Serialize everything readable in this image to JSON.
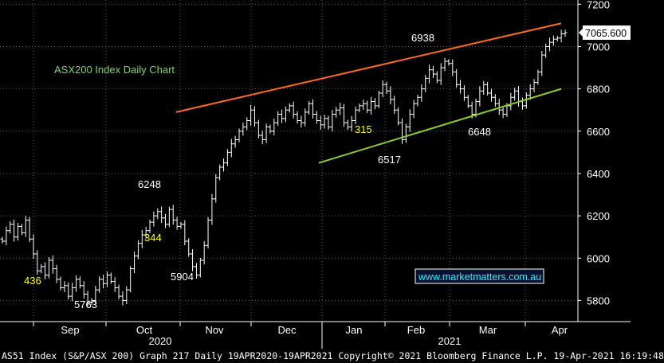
{
  "chart_data": {
    "type": "ohlc",
    "annotation_title": "ASX200 Index Daily Chart",
    "y_ticks": [
      5800,
      6000,
      6200,
      6400,
      6600,
      6800,
      7000,
      7200
    ],
    "ylim": [
      5700,
      7220
    ],
    "x_months": [
      "Sep",
      "Oct",
      "Nov",
      "Dec",
      "Jan",
      "Feb",
      "Mar",
      "Apr"
    ],
    "x_years": [
      "2020",
      "2021"
    ],
    "last_price_label": "7065.600",
    "url_label": "www.marketmatters.com.au",
    "value_labels": [
      {
        "text": "436",
        "color": "#ffff00"
      },
      {
        "text": "5763",
        "color": "#ffffff"
      },
      {
        "text": "6248",
        "color": "#ffffff"
      },
      {
        "text": "344",
        "color": "#ffff00"
      },
      {
        "text": "5904",
        "color": "#ffffff"
      },
      {
        "text": "315",
        "color": "#ffff00"
      },
      {
        "text": "6517",
        "color": "#ffffff"
      },
      {
        "text": "6938",
        "color": "#ffffff"
      },
      {
        "text": "6648",
        "color": "#ffffff"
      }
    ],
    "trendlines": [
      {
        "name": "upper",
        "color": "#ff6a1a",
        "from": {
          "x": "2020-11-05",
          "y": 6690
        },
        "to": {
          "x": "2021-04-16",
          "y": 7110
        }
      },
      {
        "name": "lower",
        "color": "#8ccc26",
        "from": {
          "x": "2021-01-04",
          "y": 6450
        },
        "to": {
          "x": "2021-04-16",
          "y": 6800
        }
      }
    ],
    "closes": [
      6080,
      6130,
      6160,
      6100,
      6150,
      6120,
      6180,
      6090,
      6020,
      5940,
      5960,
      5920,
      5990,
      5950,
      5900,
      5860,
      5870,
      5820,
      5860,
      5900,
      5870,
      5830,
      5790,
      5800,
      5850,
      5900,
      5880,
      5920,
      5890,
      5860,
      5820,
      5800,
      5850,
      5950,
      6010,
      6070,
      6110,
      6130,
      6170,
      6200,
      6220,
      6190,
      6160,
      6230,
      6180,
      6150,
      6160,
      6080,
      6020,
      5960,
      5920,
      5990,
      6060,
      6180,
      6280,
      6380,
      6430,
      6450,
      6500,
      6540,
      6560,
      6600,
      6620,
      6650,
      6700,
      6640,
      6580,
      6560,
      6620,
      6600,
      6640,
      6680,
      6660,
      6700,
      6720,
      6680,
      6650,
      6640,
      6690,
      6730,
      6680,
      6650,
      6630,
      6660,
      6620,
      6680,
      6700,
      6710,
      6640,
      6620,
      6650,
      6700,
      6720,
      6730,
      6700,
      6740,
      6720,
      6780,
      6820,
      6790,
      6750,
      6700,
      6640,
      6560,
      6620,
      6680,
      6730,
      6760,
      6800,
      6850,
      6890,
      6870,
      6840,
      6900,
      6930,
      6920,
      6880,
      6820,
      6800,
      6760,
      6720,
      6680,
      6740,
      6790,
      6820,
      6780,
      6760,
      6730,
      6700,
      6680,
      6720,
      6760,
      6790,
      6740,
      6720,
      6770,
      6800,
      6830,
      6880,
      6960,
      7000,
      7020,
      7035,
      7040,
      7060,
      7065.6
    ],
    "footer": {
      "left": "AS51 Index (S&P/ASX 200) Graph 217",
      "middle": "Daily 19APR2020-19APR2021",
      "right": "Copyright© 2021 Bloomberg Finance L.P.",
      "timestamp": "19-Apr-2021 16:19:48"
    }
  }
}
